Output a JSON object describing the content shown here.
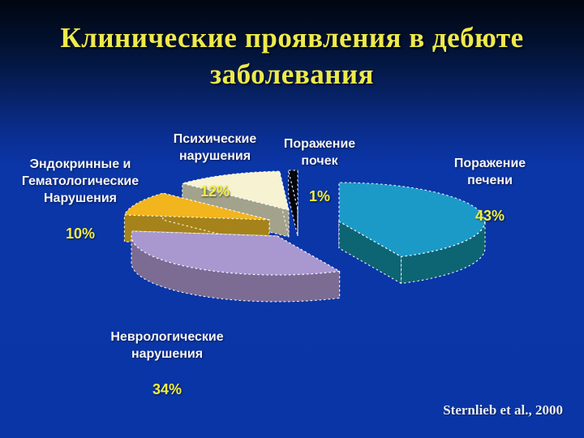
{
  "slide": {
    "title": "Клинические проявления в дебюте\nзаболевания",
    "citation": "Sternlieb et al., 2000",
    "background_top": "#010610",
    "background_bottom": "#0a35a6",
    "title_color": "#eeea4a",
    "label_color": "#f4f4f6",
    "percent_color": "#f2ef3e"
  },
  "chart_data": {
    "type": "pie",
    "style": "3d-exploded",
    "unit": "%",
    "start_angle_deg": 0,
    "direction": "clockwise",
    "legend_position": "none",
    "slices": [
      {
        "label": "Поражение печени",
        "value": 43,
        "color": "#1b9ac8",
        "side": "#0d6573"
      },
      {
        "label": "Неврологические нарушения",
        "value": 34,
        "color": "#a998d0",
        "side": "#7c6c94"
      },
      {
        "label": "Эндокринные и Гематологические Нарушения",
        "value": 10,
        "color": "#f2b51d",
        "side": "#a5831a"
      },
      {
        "label": "Психические нарушения",
        "value": 12,
        "color": "#f7f3d2",
        "side": "#a3a28c"
      },
      {
        "label": "Поражение почек",
        "value": 1,
        "color": "#05050c",
        "side": "#03030a"
      }
    ]
  },
  "labels": [
    {
      "text": "Поражение\nпечени",
      "pct": "43%"
    },
    {
      "text": "Неврологические\nнарушения",
      "pct": "34%"
    },
    {
      "text": "Эндокринные и\nГематологические\nНарушения",
      "pct": "10%"
    },
    {
      "text": "Психические\nнарушения",
      "pct": "12%"
    },
    {
      "text": "Поражение\nпочек",
      "pct": "1%"
    }
  ]
}
